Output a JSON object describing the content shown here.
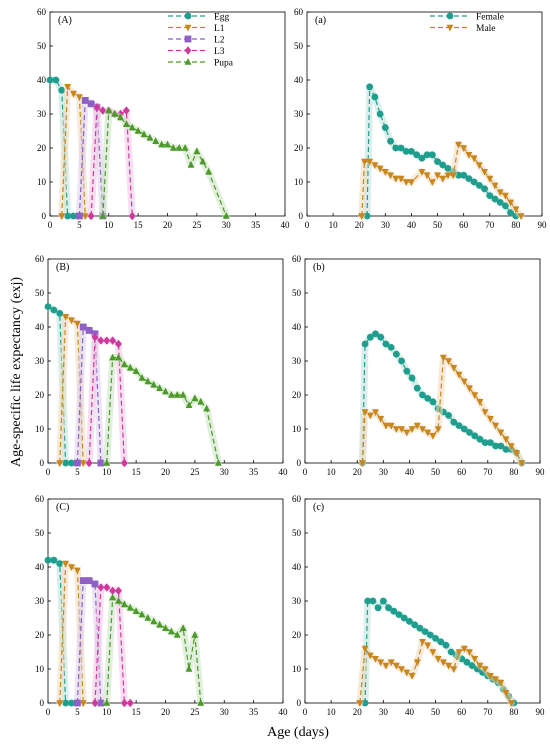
{
  "figure": {
    "ylabel": "Age-specific life expectancy (exj)",
    "xlabel": "Age (days)"
  },
  "colors": {
    "Egg": "#1f9e8e",
    "L1": "#c8861c",
    "L2": "#8e5fc4",
    "L3": "#cc3a9e",
    "Pupa": "#4c9a2a",
    "Female": "#1f9e8e",
    "Male": "#c8861c"
  },
  "chart_data": [
    {
      "id": "A",
      "panel_label": "(A)",
      "type": "line",
      "xlim": [
        0,
        40
      ],
      "ylim": [
        0,
        60
      ],
      "xticks": [
        0,
        5,
        10,
        15,
        20,
        25,
        30,
        35,
        40
      ],
      "yticks": [
        0,
        10,
        20,
        30,
        40,
        50,
        60
      ],
      "legend": {
        "position": "top-center",
        "entries": [
          "Egg",
          "L1",
          "L2",
          "L3",
          "Pupa"
        ]
      },
      "series": [
        {
          "name": "Egg",
          "marker": "circle",
          "x": [
            0,
            1,
            2,
            3,
            4
          ],
          "y": [
            40,
            40,
            37,
            0,
            0
          ]
        },
        {
          "name": "L1",
          "marker": "tri-down",
          "x": [
            2,
            3,
            4,
            5,
            6
          ],
          "y": [
            0,
            38,
            36,
            35,
            0
          ]
        },
        {
          "name": "L2",
          "marker": "square",
          "x": [
            5,
            6,
            7,
            8,
            9
          ],
          "y": [
            0,
            34,
            33,
            32,
            0
          ]
        },
        {
          "name": "L3",
          "marker": "diamond",
          "x": [
            7,
            8,
            9,
            10,
            11,
            12,
            13,
            14
          ],
          "y": [
            0,
            32,
            31,
            31,
            30,
            30,
            31,
            0
          ]
        },
        {
          "name": "Pupa",
          "marker": "tri-up",
          "x": [
            9,
            10,
            11,
            12,
            13,
            14,
            15,
            16,
            17,
            18,
            19,
            20,
            21,
            22,
            23,
            24,
            25,
            26,
            27,
            30
          ],
          "y": [
            0,
            31,
            30,
            29,
            27,
            26,
            25,
            24,
            23,
            22,
            21,
            21,
            20,
            20,
            20,
            15,
            19,
            16,
            13,
            0
          ]
        }
      ]
    },
    {
      "id": "a",
      "panel_label": "(a)",
      "type": "line",
      "xlim": [
        0,
        90
      ],
      "ylim": [
        0,
        60
      ],
      "xticks": [
        0,
        10,
        20,
        30,
        40,
        50,
        60,
        70,
        80,
        90
      ],
      "yticks": [
        0,
        10,
        20,
        30,
        40,
        50,
        60
      ],
      "legend": {
        "position": "top-right",
        "entries": [
          "Female",
          "Male"
        ]
      },
      "series": [
        {
          "name": "Female",
          "marker": "circle",
          "x": [
            23,
            24,
            26,
            28,
            30,
            32,
            34,
            36,
            38,
            40,
            42,
            44,
            46,
            48,
            50,
            52,
            54,
            56,
            58,
            60,
            62,
            64,
            66,
            68,
            70,
            72,
            74,
            76,
            78,
            80
          ],
          "y": [
            0,
            38,
            35,
            30,
            26,
            22,
            20,
            20,
            19,
            19,
            18,
            17,
            18,
            18,
            16,
            15,
            14,
            13,
            12,
            12,
            11,
            10,
            9,
            8,
            6,
            5,
            4,
            3,
            1,
            0
          ]
        },
        {
          "name": "Male",
          "marker": "tri-down",
          "x": [
            21,
            22,
            24,
            26,
            28,
            30,
            32,
            34,
            36,
            38,
            40,
            44,
            46,
            48,
            50,
            52,
            54,
            56,
            58,
            60,
            62,
            64,
            66,
            68,
            70,
            72,
            74,
            76,
            78,
            80,
            82
          ],
          "y": [
            0,
            16,
            16,
            15,
            14,
            13,
            12,
            11,
            11,
            10,
            10,
            13,
            12,
            10,
            12,
            11,
            12,
            12,
            21,
            20,
            18,
            17,
            15,
            13,
            11,
            9,
            7,
            6,
            4,
            2,
            0
          ]
        }
      ]
    },
    {
      "id": "B",
      "panel_label": "(B)",
      "type": "line",
      "xlim": [
        0,
        40
      ],
      "ylim": [
        0,
        60
      ],
      "xticks": [
        0,
        5,
        10,
        15,
        20,
        25,
        30,
        35,
        40
      ],
      "yticks": [
        0,
        10,
        20,
        30,
        40,
        50,
        60
      ],
      "series": [
        {
          "name": "Egg",
          "marker": "circle",
          "x": [
            0,
            1,
            2,
            3,
            4
          ],
          "y": [
            46,
            45,
            44,
            0,
            0
          ]
        },
        {
          "name": "L1",
          "marker": "tri-down",
          "x": [
            2,
            3,
            4,
            5,
            6
          ],
          "y": [
            0,
            43,
            42,
            41,
            0
          ]
        },
        {
          "name": "L2",
          "marker": "square",
          "x": [
            5,
            6,
            7,
            8,
            9
          ],
          "y": [
            0,
            40,
            39,
            38,
            0
          ]
        },
        {
          "name": "L3",
          "marker": "diamond",
          "x": [
            7,
            8,
            9,
            10,
            11,
            12,
            13
          ],
          "y": [
            0,
            37,
            36,
            36,
            36,
            35,
            0
          ]
        },
        {
          "name": "Pupa",
          "marker": "tri-up",
          "x": [
            10,
            11,
            12,
            13,
            14,
            15,
            16,
            17,
            18,
            19,
            20,
            21,
            22,
            23,
            24,
            25,
            26,
            27,
            29
          ],
          "y": [
            0,
            31,
            31,
            29,
            28,
            27,
            25,
            24,
            23,
            22,
            21,
            20,
            20,
            20,
            17,
            19,
            18,
            16,
            0
          ]
        }
      ]
    },
    {
      "id": "b",
      "panel_label": "(b)",
      "type": "line",
      "xlim": [
        0,
        90
      ],
      "ylim": [
        0,
        60
      ],
      "xticks": [
        0,
        10,
        20,
        30,
        40,
        50,
        60,
        70,
        80,
        90
      ],
      "yticks": [
        0,
        10,
        20,
        30,
        40,
        50,
        60
      ],
      "series": [
        {
          "name": "Female",
          "marker": "circle",
          "x": [
            22,
            23,
            25,
            27,
            29,
            31,
            33,
            35,
            37,
            39,
            41,
            43,
            45,
            47,
            49,
            51,
            53,
            55,
            57,
            59,
            61,
            63,
            65,
            67,
            69,
            71,
            73,
            75,
            77,
            79,
            81,
            83
          ],
          "y": [
            0,
            35,
            37,
            38,
            37,
            35,
            34,
            32,
            30,
            27,
            25,
            22,
            20,
            19,
            18,
            16,
            15,
            14,
            12,
            11,
            10,
            9,
            8,
            7,
            6,
            6,
            5,
            5,
            4,
            4,
            3,
            0
          ]
        },
        {
          "name": "Male",
          "marker": "tri-down",
          "x": [
            22,
            23,
            25,
            27,
            29,
            31,
            33,
            35,
            37,
            39,
            41,
            43,
            45,
            47,
            49,
            51,
            53,
            55,
            57,
            59,
            61,
            63,
            65,
            67,
            69,
            71,
            73,
            75,
            77,
            79,
            81,
            83
          ],
          "y": [
            0,
            15,
            14,
            15,
            13,
            11,
            11,
            10,
            10,
            9,
            10,
            11,
            10,
            9,
            8,
            10,
            31,
            30,
            28,
            26,
            24,
            22,
            20,
            18,
            15,
            13,
            11,
            9,
            7,
            5,
            3,
            0
          ]
        }
      ]
    },
    {
      "id": "C",
      "panel_label": "(C)",
      "type": "line",
      "xlim": [
        0,
        40
      ],
      "ylim": [
        0,
        60
      ],
      "xticks": [
        0,
        5,
        10,
        15,
        20,
        25,
        30,
        35,
        40
      ],
      "yticks": [
        0,
        10,
        20,
        30,
        40,
        50,
        60
      ],
      "series": [
        {
          "name": "Egg",
          "marker": "circle",
          "x": [
            0,
            1,
            2,
            3,
            4
          ],
          "y": [
            42,
            42,
            41,
            0,
            0
          ]
        },
        {
          "name": "L1",
          "marker": "tri-down",
          "x": [
            2,
            3,
            4,
            5,
            6
          ],
          "y": [
            0,
            41,
            40,
            39,
            0
          ]
        },
        {
          "name": "L2",
          "marker": "square",
          "x": [
            5,
            6,
            7,
            8,
            9
          ],
          "y": [
            0,
            36,
            36,
            35,
            0
          ]
        },
        {
          "name": "L3",
          "marker": "diamond",
          "x": [
            8,
            9,
            10,
            11,
            12,
            13,
            14
          ],
          "y": [
            0,
            34,
            34,
            33,
            33,
            0,
            0
          ]
        },
        {
          "name": "Pupa",
          "marker": "tri-up",
          "x": [
            10,
            11,
            12,
            13,
            14,
            15,
            16,
            17,
            18,
            19,
            20,
            21,
            22,
            23,
            24,
            25,
            26
          ],
          "y": [
            0,
            31,
            30,
            29,
            28,
            27,
            26,
            25,
            24,
            23,
            22,
            21,
            20,
            22,
            10,
            20,
            0
          ]
        }
      ]
    },
    {
      "id": "c",
      "panel_label": "(c)",
      "type": "line",
      "xlim": [
        0,
        90
      ],
      "ylim": [
        0,
        60
      ],
      "xticks": [
        0,
        10,
        20,
        30,
        40,
        50,
        60,
        70,
        80,
        90
      ],
      "yticks": [
        0,
        10,
        20,
        30,
        40,
        50,
        60
      ],
      "series": [
        {
          "name": "Female",
          "marker": "circle",
          "x": [
            23,
            24,
            26,
            28,
            30,
            32,
            34,
            36,
            38,
            40,
            42,
            44,
            46,
            48,
            50,
            52,
            54,
            56,
            58,
            60,
            62,
            64,
            66,
            68,
            70,
            72,
            74,
            76,
            78,
            80
          ],
          "y": [
            0,
            30,
            30,
            28,
            30,
            28,
            27,
            26,
            25,
            24,
            23,
            22,
            21,
            20,
            19,
            18,
            17,
            15,
            14,
            13,
            12,
            11,
            10,
            9,
            8,
            7,
            6,
            4,
            2,
            0
          ]
        },
        {
          "name": "Male",
          "marker": "tri-down",
          "x": [
            21,
            23,
            25,
            27,
            29,
            31,
            33,
            35,
            37,
            39,
            41,
            43,
            45,
            47,
            49,
            51,
            53,
            55,
            57,
            59,
            61,
            63,
            65,
            67,
            69,
            71,
            73,
            75,
            77,
            79
          ],
          "y": [
            0,
            16,
            14,
            13,
            12,
            11,
            12,
            11,
            10,
            9,
            8,
            12,
            18,
            17,
            15,
            13,
            12,
            11,
            10,
            15,
            16,
            15,
            13,
            11,
            10,
            8,
            7,
            6,
            3,
            0
          ]
        }
      ]
    }
  ]
}
